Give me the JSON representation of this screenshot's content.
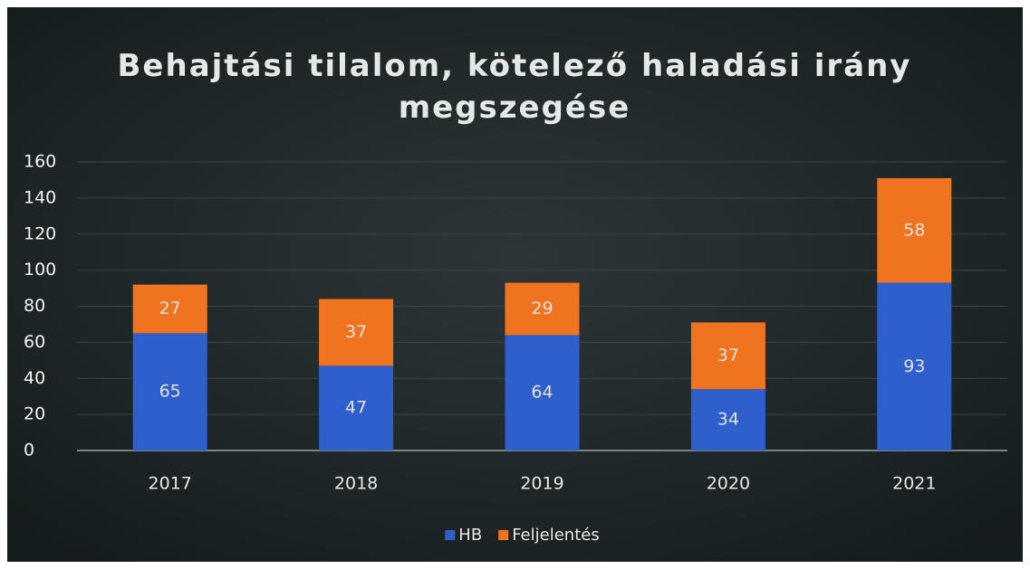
{
  "chart_data": {
    "type": "stacked_bar",
    "title": "Behajtási tilalom, kötelező haladási irány megszegése",
    "categories": [
      "2017",
      "2018",
      "2019",
      "2020",
      "2021"
    ],
    "series": [
      {
        "name": "HB",
        "color": "#2f5fcc",
        "values": [
          65,
          47,
          64,
          34,
          93
        ]
      },
      {
        "name": "Feljelentés",
        "color": "#f0731f",
        "values": [
          27,
          37,
          29,
          37,
          58
        ]
      }
    ],
    "ylim": [
      0,
      160
    ],
    "yticks": [
      0,
      20,
      40,
      60,
      80,
      100,
      120,
      140,
      160
    ],
    "grid": true,
    "legend": "bottom"
  }
}
